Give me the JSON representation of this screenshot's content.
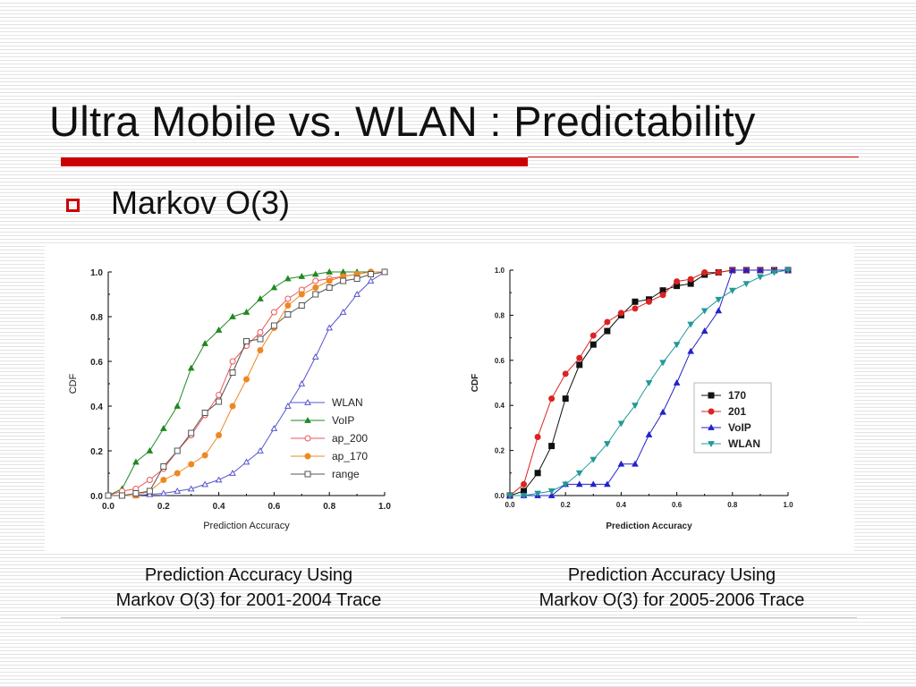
{
  "slide": {
    "title": "Ultra Mobile vs. WLAN : Predictability",
    "bullet": "Markov O(3)",
    "accent_color": "#cc0000",
    "bullet_icon": "hollow-square-icon"
  },
  "captions": [
    {
      "line1": "Prediction Accuracy Using",
      "line2": "Markov O(3) for 2001-2004 Trace"
    },
    {
      "line1": "Prediction Accuracy Using",
      "line2": "Markov O(3) for 2005-2006 Trace"
    }
  ],
  "chart_data": [
    {
      "type": "line",
      "xlabel": "Prediction Accuracy",
      "ylabel": "CDF",
      "xlim": [
        0.0,
        1.0
      ],
      "ylim": [
        0.0,
        1.0
      ],
      "xticks": [
        "0.0",
        "0.2",
        "0.4",
        "0.6",
        "0.8",
        "1.0"
      ],
      "yticks": [
        "0.0",
        "0.2",
        "0.4",
        "0.6",
        "0.8",
        "1.0"
      ],
      "grid": false,
      "legend_position": "bottom-right",
      "series": [
        {
          "name": "WLAN",
          "color": "#5555cc",
          "marker": "triangle-up-open",
          "x": [
            0.0,
            0.05,
            0.1,
            0.15,
            0.2,
            0.25,
            0.3,
            0.35,
            0.4,
            0.45,
            0.5,
            0.55,
            0.6,
            0.65,
            0.7,
            0.75,
            0.8,
            0.85,
            0.9,
            0.95,
            1.0
          ],
          "y": [
            0.0,
            0.0,
            0.0,
            0.005,
            0.01,
            0.02,
            0.03,
            0.05,
            0.07,
            0.1,
            0.15,
            0.2,
            0.3,
            0.4,
            0.5,
            0.62,
            0.75,
            0.82,
            0.9,
            0.96,
            1.0
          ]
        },
        {
          "name": "VoIP",
          "color": "#228822",
          "marker": "triangle-up-filled",
          "x": [
            0.0,
            0.05,
            0.1,
            0.15,
            0.2,
            0.25,
            0.3,
            0.35,
            0.4,
            0.45,
            0.5,
            0.55,
            0.6,
            0.65,
            0.7,
            0.75,
            0.8,
            0.85,
            0.9,
            0.95,
            1.0
          ],
          "y": [
            0.0,
            0.03,
            0.15,
            0.2,
            0.3,
            0.4,
            0.57,
            0.68,
            0.74,
            0.8,
            0.82,
            0.88,
            0.93,
            0.97,
            0.98,
            0.99,
            1.0,
            1.0,
            1.0,
            1.0,
            1.0
          ]
        },
        {
          "name": "ap_200",
          "color": "#ee5555",
          "marker": "circle-open",
          "x": [
            0.0,
            0.05,
            0.1,
            0.15,
            0.2,
            0.25,
            0.3,
            0.35,
            0.4,
            0.45,
            0.5,
            0.55,
            0.6,
            0.65,
            0.7,
            0.75,
            0.8,
            0.85,
            0.9,
            0.95,
            1.0
          ],
          "y": [
            0.0,
            0.02,
            0.03,
            0.07,
            0.12,
            0.2,
            0.27,
            0.36,
            0.45,
            0.6,
            0.67,
            0.73,
            0.82,
            0.88,
            0.92,
            0.96,
            0.97,
            0.98,
            0.99,
            1.0,
            1.0
          ]
        },
        {
          "name": "ap_170",
          "color": "#ee8822",
          "marker": "circle-filled",
          "x": [
            0.0,
            0.05,
            0.1,
            0.15,
            0.2,
            0.25,
            0.3,
            0.35,
            0.4,
            0.45,
            0.5,
            0.55,
            0.6,
            0.65,
            0.7,
            0.75,
            0.8,
            0.85,
            0.9,
            0.95,
            1.0
          ],
          "y": [
            0.0,
            0.0,
            0.0,
            0.02,
            0.07,
            0.1,
            0.14,
            0.18,
            0.27,
            0.4,
            0.52,
            0.65,
            0.75,
            0.85,
            0.9,
            0.93,
            0.96,
            0.98,
            0.99,
            1.0,
            1.0
          ]
        },
        {
          "name": "range",
          "color": "#555555",
          "marker": "square-open",
          "x": [
            0.0,
            0.05,
            0.1,
            0.15,
            0.2,
            0.25,
            0.3,
            0.35,
            0.4,
            0.45,
            0.5,
            0.55,
            0.6,
            0.65,
            0.7,
            0.75,
            0.8,
            0.85,
            0.9,
            0.95,
            1.0
          ],
          "y": [
            0.0,
            0.0,
            0.01,
            0.02,
            0.13,
            0.2,
            0.28,
            0.37,
            0.42,
            0.55,
            0.69,
            0.7,
            0.76,
            0.81,
            0.85,
            0.9,
            0.93,
            0.96,
            0.97,
            0.99,
            1.0
          ]
        }
      ]
    },
    {
      "type": "line",
      "xlabel": "Prediction Accuracy",
      "ylabel": "CDF",
      "xlim": [
        0.0,
        1.0
      ],
      "ylim": [
        0.0,
        1.0
      ],
      "xticks": [
        "0.0",
        "0.2",
        "0.4",
        "0.6",
        "0.8",
        "1.0"
      ],
      "yticks": [
        "0.0",
        "0.2",
        "0.4",
        "0.6",
        "0.8",
        "1.0"
      ],
      "grid": false,
      "legend_position": "center-right",
      "series": [
        {
          "name": "170",
          "color": "#111111",
          "marker": "square-filled",
          "x": [
            0.0,
            0.05,
            0.1,
            0.15,
            0.2,
            0.25,
            0.3,
            0.35,
            0.4,
            0.45,
            0.5,
            0.55,
            0.6,
            0.65,
            0.7,
            0.75,
            0.8,
            0.85,
            0.9,
            0.95,
            1.0
          ],
          "y": [
            0.0,
            0.02,
            0.1,
            0.22,
            0.43,
            0.58,
            0.67,
            0.73,
            0.8,
            0.86,
            0.87,
            0.91,
            0.93,
            0.94,
            0.98,
            0.99,
            1.0,
            1.0,
            1.0,
            1.0,
            1.0
          ]
        },
        {
          "name": "201",
          "color": "#dd2222",
          "marker": "circle-filled",
          "x": [
            0.0,
            0.05,
            0.1,
            0.15,
            0.2,
            0.25,
            0.3,
            0.35,
            0.4,
            0.45,
            0.5,
            0.55,
            0.6,
            0.65,
            0.7,
            0.75,
            0.8,
            0.85,
            0.9,
            0.95,
            1.0
          ],
          "y": [
            0.0,
            0.05,
            0.26,
            0.43,
            0.54,
            0.61,
            0.71,
            0.77,
            0.81,
            0.83,
            0.86,
            0.89,
            0.95,
            0.96,
            0.99,
            0.99,
            1.0,
            1.0,
            1.0,
            1.0,
            1.0
          ]
        },
        {
          "name": "VoIP",
          "color": "#2222cc",
          "marker": "triangle-up-filled",
          "x": [
            0.0,
            0.05,
            0.1,
            0.15,
            0.2,
            0.25,
            0.3,
            0.35,
            0.4,
            0.45,
            0.5,
            0.55,
            0.6,
            0.65,
            0.7,
            0.75,
            0.8,
            0.85,
            0.9,
            0.95,
            1.0
          ],
          "y": [
            0.0,
            0.0,
            0.0,
            0.0,
            0.05,
            0.05,
            0.05,
            0.05,
            0.14,
            0.14,
            0.27,
            0.37,
            0.5,
            0.64,
            0.73,
            0.82,
            1.0,
            1.0,
            1.0,
            1.0,
            1.0
          ]
        },
        {
          "name": "WLAN",
          "color": "#229999",
          "marker": "triangle-down-filled",
          "x": [
            0.0,
            0.05,
            0.1,
            0.15,
            0.2,
            0.25,
            0.3,
            0.35,
            0.4,
            0.45,
            0.5,
            0.55,
            0.6,
            0.65,
            0.7,
            0.75,
            0.8,
            0.85,
            0.9,
            0.95,
            1.0
          ],
          "y": [
            0.0,
            0.0,
            0.01,
            0.02,
            0.05,
            0.1,
            0.16,
            0.23,
            0.32,
            0.4,
            0.5,
            0.59,
            0.67,
            0.76,
            0.82,
            0.87,
            0.91,
            0.94,
            0.97,
            0.99,
            1.0
          ]
        }
      ]
    }
  ]
}
